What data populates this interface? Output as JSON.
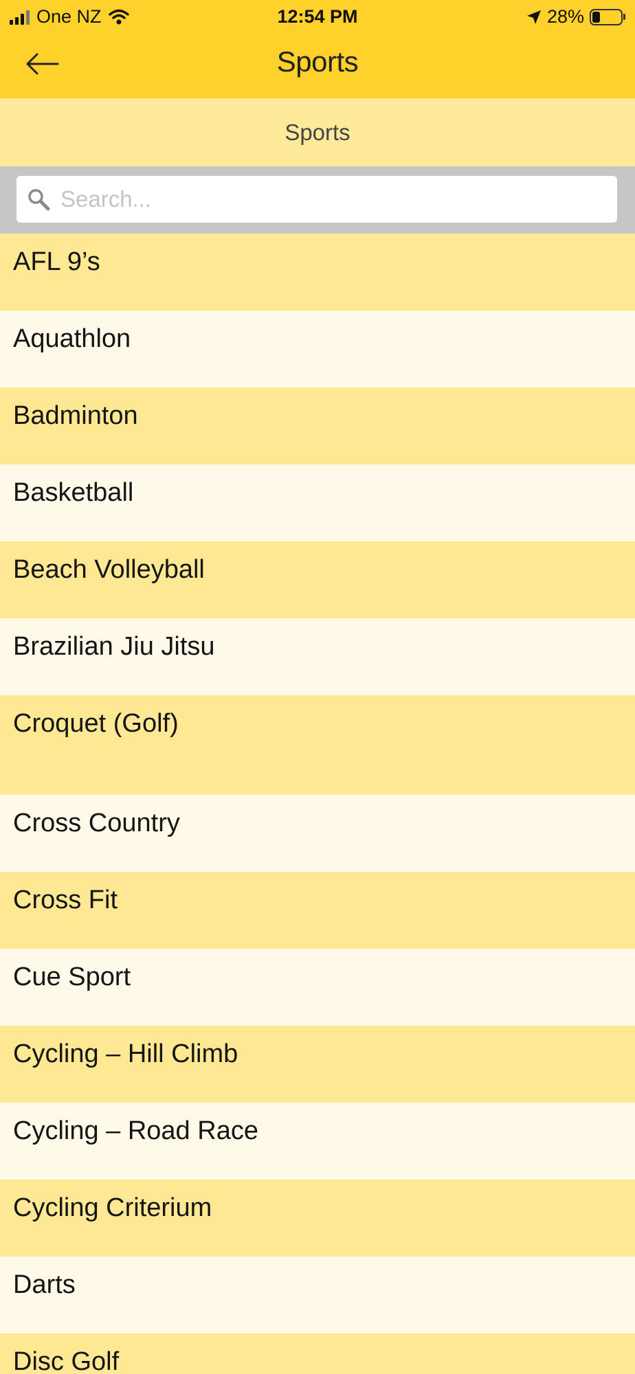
{
  "status_bar": {
    "carrier": "One NZ",
    "time": "12:54 PM",
    "battery": "28%",
    "battery_level": 0.28
  },
  "header": {
    "title": "Sports",
    "back_icon": "arrow-left-icon"
  },
  "sub_header": {
    "title": "Sports"
  },
  "search": {
    "placeholder": "Search...",
    "value": "",
    "icon": "search-icon"
  },
  "colors": {
    "primary": "#ffd12a",
    "sub_header": "#ffe99a",
    "row_dark": "#ffe894",
    "row_light": "#fef9e8",
    "search_bar_bg": "#c6c6c6"
  },
  "sports": [
    {
      "label": "AFL 9’s"
    },
    {
      "label": "Aquathlon"
    },
    {
      "label": "Badminton"
    },
    {
      "label": "Basketball"
    },
    {
      "label": "Beach Volleyball"
    },
    {
      "label": "Brazilian Jiu Jitsu"
    },
    {
      "label": "Croquet (Golf)"
    },
    {
      "label": "Cross Country"
    },
    {
      "label": "Cross Fit"
    },
    {
      "label": "Cue Sport"
    },
    {
      "label": "Cycling – Hill Climb"
    },
    {
      "label": "Cycling – Road Race"
    },
    {
      "label": "Cycling Criterium"
    },
    {
      "label": "Darts"
    },
    {
      "label": "Disc Golf"
    }
  ]
}
